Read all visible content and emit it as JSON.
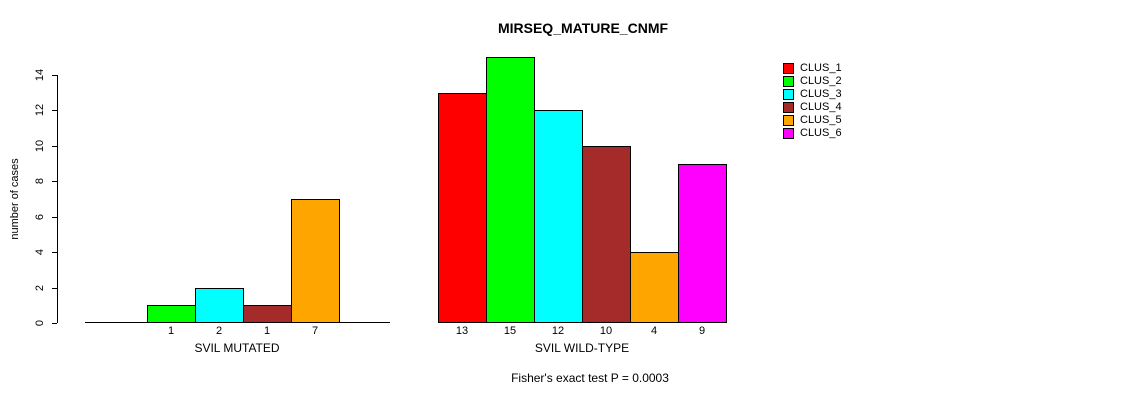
{
  "chart_data": {
    "type": "bar",
    "title": "MIRSEQ_MATURE_CNMF",
    "ylabel": "number of cases",
    "ylim": [
      0,
      15
    ],
    "yticks": [
      0,
      2,
      4,
      6,
      8,
      10,
      12,
      14
    ],
    "grid": false,
    "legend_position": "right",
    "clusters": [
      "CLUS_1",
      "CLUS_2",
      "CLUS_3",
      "CLUS_4",
      "CLUS_5",
      "CLUS_6"
    ],
    "cluster_colors": [
      "#ff0000",
      "#00ff00",
      "#00ffff",
      "#a52a2a",
      "#ffa500",
      "#ff00ff"
    ],
    "groups": [
      {
        "label": "SVIL MUTATED",
        "values": [
          0,
          1,
          2,
          1,
          7,
          0
        ],
        "bar_labels": [
          "",
          "1",
          "2",
          "1",
          "7",
          ""
        ]
      },
      {
        "label": "SVIL WILD-TYPE",
        "values": [
          13,
          15,
          12,
          10,
          4,
          9
        ],
        "bar_labels": [
          "13",
          "15",
          "12",
          "10",
          "4",
          "9"
        ]
      }
    ],
    "annotation": "Fisher's exact test P = 0.0003"
  }
}
